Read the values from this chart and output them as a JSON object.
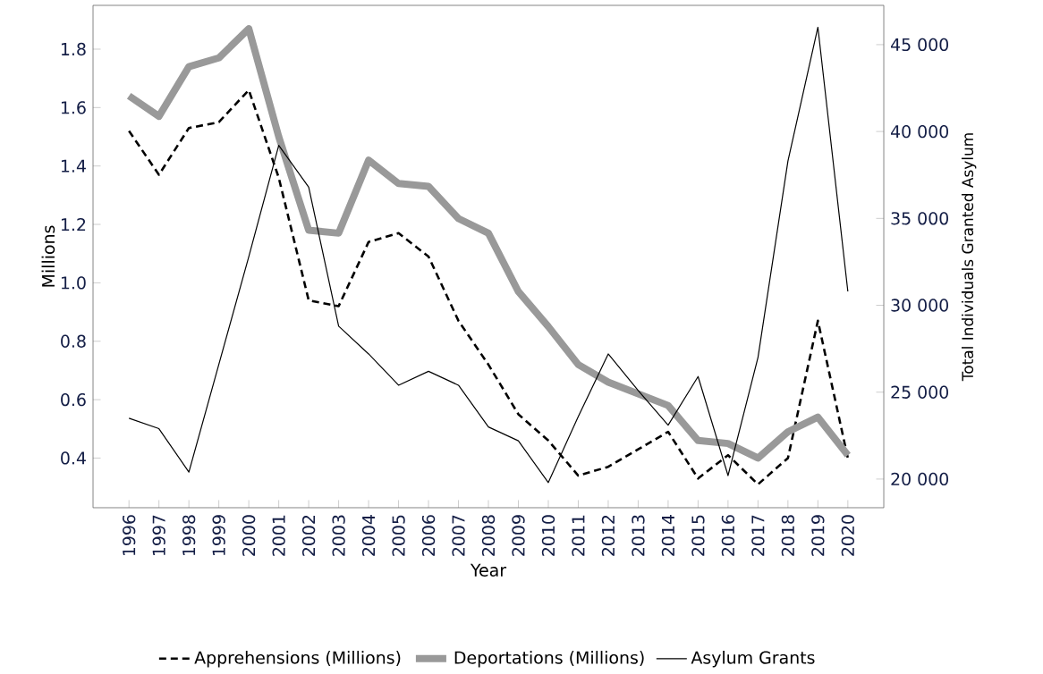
{
  "chart_data": {
    "type": "line",
    "xlabel": "Year",
    "ylabel": "Millions",
    "y2label": "Total Individuals Granted Asylum",
    "legend": "bottom",
    "grid": false,
    "categories": [
      "1996",
      "1997",
      "1998",
      "1999",
      "2000",
      "2001",
      "2002",
      "2003",
      "2004",
      "2005",
      "2006",
      "2007",
      "2008",
      "2009",
      "2010",
      "2011",
      "2012",
      "2013",
      "2014",
      "2015",
      "2016",
      "2017",
      "2018",
      "2019",
      "2020"
    ],
    "ylim": [
      0.23,
      1.95
    ],
    "yticks": [
      {
        "value": 0.4,
        "label": "0.4"
      },
      {
        "value": 0.6,
        "label": "0.6"
      },
      {
        "value": 0.8,
        "label": "0.8"
      },
      {
        "value": 1.0,
        "label": "1.0"
      },
      {
        "value": 1.2,
        "label": "1.2"
      },
      {
        "value": 1.4,
        "label": "1.4"
      },
      {
        "value": 1.6,
        "label": "1.6"
      },
      {
        "value": 1.8,
        "label": "1.8"
      }
    ],
    "y2lim": [
      18350,
      47260
    ],
    "y2ticks": [
      {
        "value": 20000,
        "label": "20 000"
      },
      {
        "value": 25000,
        "label": "25 000"
      },
      {
        "value": 30000,
        "label": "30 000"
      },
      {
        "value": 35000,
        "label": "35 000"
      },
      {
        "value": 40000,
        "label": "40 000"
      },
      {
        "value": 45000,
        "label": "45 000"
      }
    ],
    "series": [
      {
        "name": "Apprehensions (Millions)",
        "color": "#000000",
        "line_style": "dashed",
        "values": [
          1.52,
          1.37,
          1.53,
          1.55,
          1.66,
          1.36,
          0.94,
          0.92,
          1.14,
          1.17,
          1.09,
          0.87,
          0.72,
          0.55,
          0.46,
          0.34,
          0.37,
          0.43,
          0.49,
          0.33,
          0.41,
          0.31,
          0.4,
          0.87,
          0.4
        ]
      },
      {
        "name": "Deportations (Millions)",
        "color": "#999999",
        "line_style": "solid",
        "values": [
          1.64,
          1.57,
          1.74,
          1.77,
          1.87,
          1.5,
          1.18,
          1.17,
          1.42,
          1.34,
          1.33,
          1.22,
          1.17,
          0.97,
          0.85,
          0.72,
          0.66,
          0.62,
          0.58,
          0.46,
          0.45,
          0.4,
          0.49,
          0.54,
          0.41
        ]
      },
      {
        "name": "Asylum Grants",
        "color": "#000000",
        "line_style": "solid",
        "axis": "y2",
        "values": [
          23500,
          22900,
          20400,
          26600,
          32800,
          39200,
          36800,
          28800,
          27200,
          25400,
          26200,
          25400,
          23000,
          22200,
          19800,
          23600,
          27200,
          25100,
          23100,
          25900,
          20200,
          27000,
          38300,
          46000,
          30800
        ]
      }
    ]
  }
}
